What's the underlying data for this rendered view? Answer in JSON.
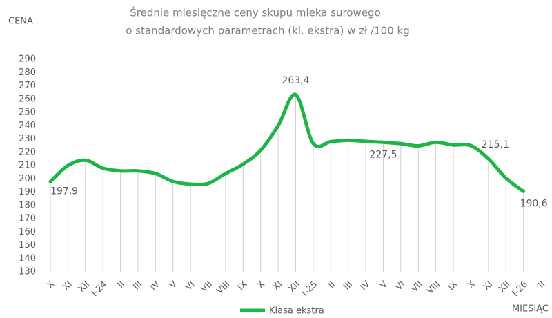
{
  "chart_data": {
    "type": "line",
    "title": [
      "Średnie  miesięczne  ceny skupu mleka surowego",
      "o standardowych  parametrach  (kl. ekstra)  w zł /100 kg"
    ],
    "y_label": "CENA",
    "x_label": "MIESIĄC",
    "categories": [
      "X",
      "XI",
      "XII",
      "I-24",
      "II",
      "III",
      "IV",
      "V",
      "VI",
      "VII",
      "VIII",
      "IX",
      "X",
      "XI",
      "XII",
      "I-25",
      "II",
      "III",
      "IV",
      "V",
      "VI",
      "VII",
      "VIII",
      "IX",
      "X",
      "XI",
      "XII",
      "I-26",
      "II"
    ],
    "series": [
      {
        "name": "Klasa ekstra",
        "color": "#1db548",
        "values": [
          197.9,
          210,
          214,
          208,
          206,
          206,
          204,
          198,
          196,
          196.5,
          204,
          211,
          221.5,
          240,
          263.4,
          226.6,
          228,
          229,
          228.2,
          227.5,
          226.5,
          224.8,
          227.5,
          225.5,
          225,
          215.1,
          200.5,
          190.6,
          null
        ],
        "value_labels": [
          "197,9",
          null,
          null,
          null,
          null,
          null,
          null,
          null,
          null,
          null,
          null,
          null,
          null,
          null,
          "263,4",
          null,
          null,
          null,
          null,
          "227,5",
          null,
          null,
          null,
          null,
          null,
          "215,1",
          null,
          "190,6",
          null
        ]
      }
    ],
    "ylim": [
      130,
      290
    ],
    "yticks": [
      130,
      140,
      150,
      160,
      170,
      180,
      190,
      200,
      210,
      220,
      230,
      240,
      250,
      260,
      270,
      280,
      290
    ],
    "legend": "bottom",
    "grid": false
  }
}
